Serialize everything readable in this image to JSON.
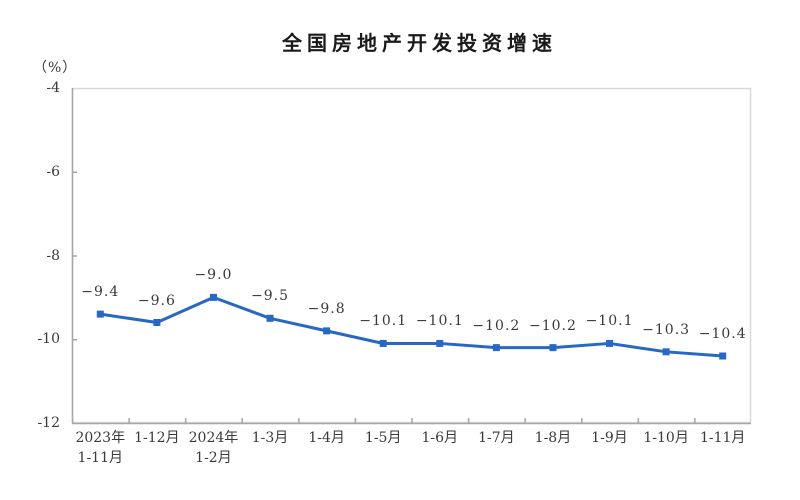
{
  "chart_data": {
    "type": "line",
    "title": "全国房地产开发投资增速",
    "unit_label": "（%）",
    "categories": [
      "2023年\n1-11月",
      "1-12月",
      "2024年\n1-2月",
      "1-3月",
      "1-4月",
      "1-5月",
      "1-6月",
      "1-7月",
      "1-8月",
      "1-9月",
      "1-10月",
      "1-11月"
    ],
    "series": [
      {
        "name": "全国房地产开发投资增速",
        "values": [
          -9.4,
          -9.6,
          -9.0,
          -9.5,
          -9.8,
          -10.1,
          -10.1,
          -10.2,
          -10.2,
          -10.1,
          -10.3,
          -10.4
        ],
        "data_labels": [
          "−9.4",
          "−9.6",
          "−9.0",
          "−9.5",
          "−9.8",
          "−10.1",
          "−10.1",
          "−10.2",
          "−10.2",
          "−10.1",
          "−10.3",
          "−10.4"
        ]
      }
    ],
    "y_tick_labels": [
      "-4",
      "-6",
      "-8",
      "-10",
      "-12"
    ],
    "y_tick_values": [
      -4,
      -6,
      -8,
      -10,
      -12
    ],
    "ylim": [
      -12,
      -4
    ],
    "grid": false,
    "legend_position": "none",
    "xlabel": "",
    "ylabel": "（%）",
    "colors": {
      "line": "#2767C5",
      "marker": "#2767C5",
      "text": "#3a3a3a",
      "axis": "#a6a6a6",
      "plot_border": "#d9d9d9",
      "title": "#1a1a1a",
      "background": "#ffffff"
    }
  }
}
